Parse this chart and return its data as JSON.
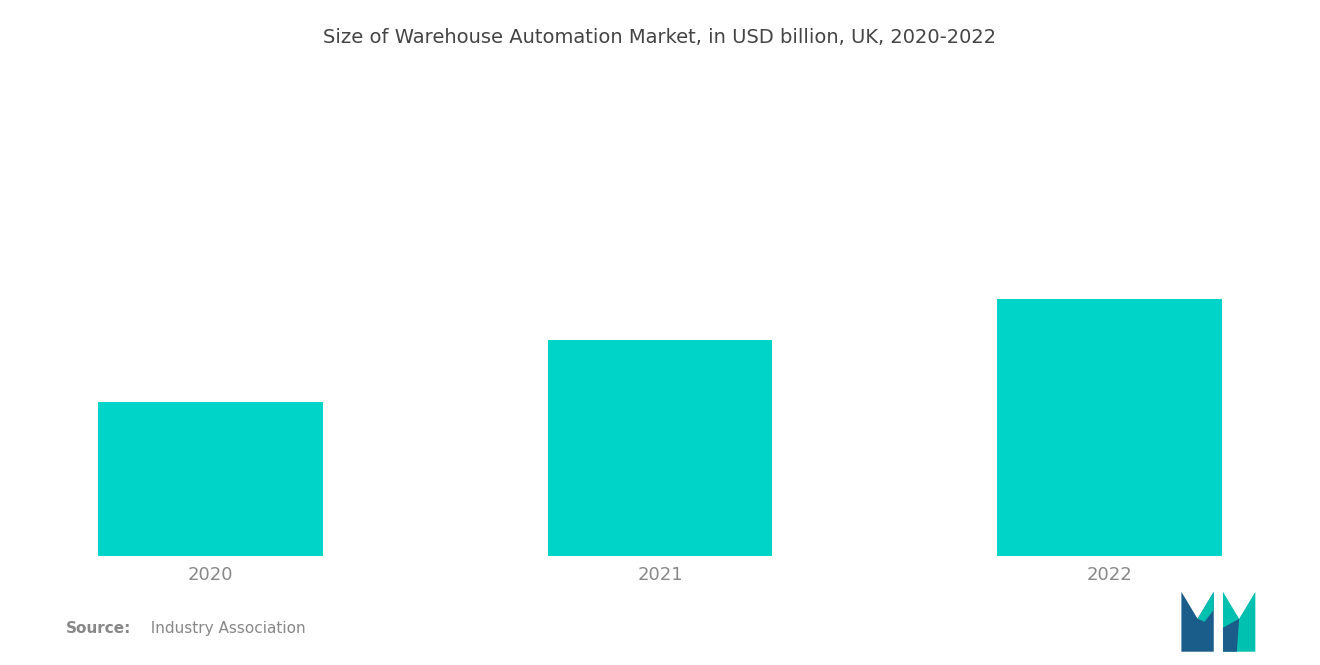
{
  "title": "Size of Warehouse Automation Market, in USD billion, UK, 2020-2022",
  "categories": [
    "2020",
    "2021",
    "2022"
  ],
  "values": [
    3.0,
    4.2,
    5.0
  ],
  "bar_color": "#00D4C8",
  "background_color": "#ffffff",
  "title_fontsize": 14,
  "tick_fontsize": 13,
  "tick_color": "#888888",
  "source_bold": "Source:",
  "source_rest": "  Industry Association",
  "source_color": "#888888",
  "ylim": [
    0,
    9.5
  ],
  "bar_width": 0.5,
  "logo_left_color": "#1a5c8a",
  "logo_right_color": "#00B5AD"
}
